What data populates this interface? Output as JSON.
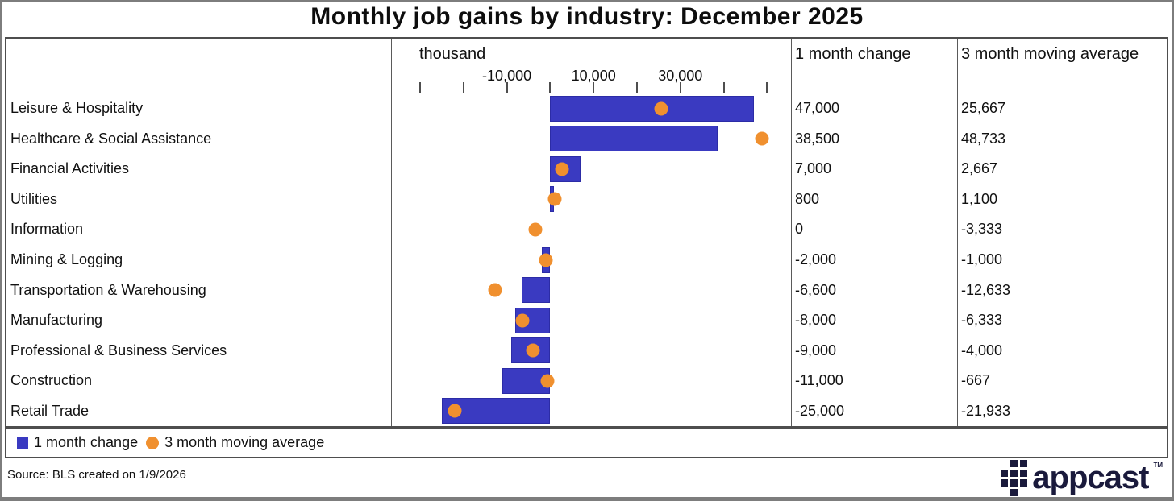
{
  "title": "Monthly job gains by industry: December 2025",
  "table": {
    "axis_header": {
      "unit_label": "thousand",
      "tick_labels": [
        "-10,000",
        "10,000",
        "30,000"
      ],
      "labeled_tick_values": [
        -10000,
        10000,
        30000
      ]
    },
    "column_headers": {
      "industry": "",
      "one_month": "1 month change",
      "three_month": "3 month moving average"
    },
    "rows": [
      {
        "industry": "Leisure & Hospitality",
        "one_month": "47,000",
        "three_month": "25,667"
      },
      {
        "industry": "Healthcare & Social Assistance",
        "one_month": "38,500",
        "three_month": "48,733"
      },
      {
        "industry": "Financial Activities",
        "one_month": "7,000",
        "three_month": "2,667"
      },
      {
        "industry": "Utilities",
        "one_month": "800",
        "three_month": "1,100"
      },
      {
        "industry": "Information",
        "one_month": "0",
        "three_month": "-3,333"
      },
      {
        "industry": "Mining & Logging",
        "one_month": "-2,000",
        "three_month": "-1,000"
      },
      {
        "industry": "Transportation & Warehousing",
        "one_month": "-6,600",
        "three_month": "-12,633"
      },
      {
        "industry": "Manufacturing",
        "one_month": "-8,000",
        "three_month": "-6,333"
      },
      {
        "industry": "Professional & Business Services",
        "one_month": "-9,000",
        "three_month": "-4,000"
      },
      {
        "industry": "Construction",
        "one_month": "-11,000",
        "three_month": "-667"
      },
      {
        "industry": "Retail Trade",
        "one_month": "-25,000",
        "three_month": "-21,933"
      }
    ]
  },
  "legend": {
    "bar_label": "1 month change",
    "dot_label": "3 month moving average"
  },
  "source": "Source: BLS created on 1/9/2026",
  "logo": {
    "wordmark": "appcast",
    "tm": "TM"
  },
  "colors": {
    "bar": "#3a3ac1",
    "bar_border": "#2c2ca6",
    "dot": "#f0902f",
    "logo": "#1a1a3c",
    "border": "#4e4e4e"
  },
  "chart_data": {
    "type": "bar",
    "orientation": "horizontal",
    "title": "Monthly job gains by industry: December 2025",
    "categories": [
      "Leisure & Hospitality",
      "Healthcare & Social Assistance",
      "Financial Activities",
      "Utilities",
      "Information",
      "Mining & Logging",
      "Transportation & Warehousing",
      "Manufacturing",
      "Professional & Business Services",
      "Construction",
      "Retail Trade"
    ],
    "series": [
      {
        "name": "1 month change",
        "style": "bar",
        "values": [
          47000,
          38500,
          7000,
          800,
          0,
          -2000,
          -6600,
          -8000,
          -9000,
          -11000,
          -25000
        ]
      },
      {
        "name": "3 month moving average",
        "style": "point",
        "values": [
          25667,
          48733,
          2667,
          1100,
          -3333,
          -1000,
          -12633,
          -6333,
          -4000,
          -667,
          -21933
        ]
      }
    ],
    "xlabel": "thousand",
    "xlim": [
      -36500,
      55500
    ],
    "x_ticks": [
      -30000,
      -20000,
      -10000,
      0,
      10000,
      20000,
      30000,
      40000,
      50000
    ],
    "x_ticks_labeled": [
      -10000,
      10000,
      30000
    ],
    "grid": false,
    "legend_position": "bottom-left"
  }
}
